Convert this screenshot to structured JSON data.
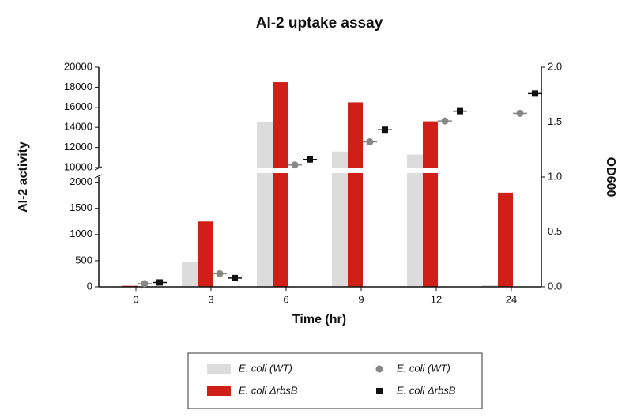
{
  "chart_data": {
    "type": "bar_dual_axis",
    "title": "AI-2 uptake assay",
    "x_label": "Time (hr)",
    "y_label": "AI-2 activity",
    "y2_label": "OD600",
    "categories": [
      "0",
      "3",
      "6",
      "9",
      "12",
      "24"
    ],
    "y_segments": [
      {
        "ylim": [
          0,
          2100
        ],
        "yticks": [
          0,
          500,
          1000,
          1500,
          2000
        ]
      },
      {
        "ylim": [
          10000,
          20000
        ],
        "yticks": [
          10000,
          12000,
          14000,
          16000,
          18000,
          20000
        ]
      }
    ],
    "y2lim": [
      0,
      2
    ],
    "y2ticks": [
      {
        "value": 0,
        "label": "0.0"
      },
      0.5,
      {
        "value": 1,
        "label": "1.0"
      },
      1.5,
      {
        "value": 2,
        "label": "2.0"
      }
    ],
    "series": [
      {
        "name": "E. coli (WT)",
        "kind": "bar",
        "color": "#dcdcdc",
        "values": [
          10,
          470,
          14500,
          11600,
          11300,
          30
        ]
      },
      {
        "name": "E. coli ΔrbsB",
        "kind": "bar",
        "color": "#cf1f17",
        "values": [
          20,
          1250,
          18500,
          16500,
          14600,
          1800
        ]
      },
      {
        "name": "E. coli (WT)",
        "kind": "point",
        "marker": "circle",
        "axis": "y2",
        "color": "#888888",
        "values": [
          0.03,
          0.12,
          1.11,
          1.32,
          1.51,
          1.58
        ]
      },
      {
        "name": "E. coli ΔrbsB",
        "kind": "point",
        "marker": "square",
        "axis": "y2",
        "color": "#111111",
        "values": [
          0.04,
          0.08,
          1.16,
          1.43,
          1.6,
          1.76
        ]
      }
    ]
  }
}
